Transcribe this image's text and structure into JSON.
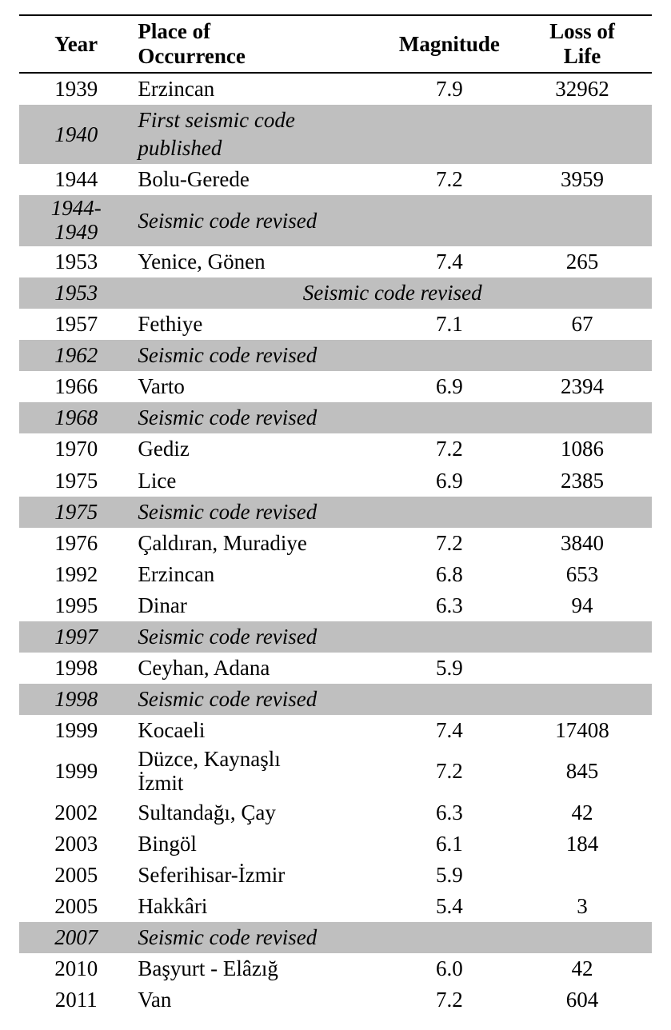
{
  "table": {
    "background_color": "#ffffff",
    "shade_color": "#bfbfbf",
    "border_color": "#000000",
    "font_family": "Times New Roman",
    "header_fontsize": 27,
    "body_fontsize": 27,
    "columns": [
      {
        "key": "year",
        "label": "Year",
        "align": "center"
      },
      {
        "key": "place",
        "label": "Place of\nOccurrence",
        "align": "left"
      },
      {
        "key": "mag",
        "label": "Magnitude",
        "align": "center"
      },
      {
        "key": "loss",
        "label": "Loss of\nLife",
        "align": "center"
      }
    ],
    "rows": [
      {
        "type": "data",
        "year": "1939",
        "place": "Erzincan",
        "mag": "7.9",
        "loss": "32962"
      },
      {
        "type": "shaded",
        "year": "1940",
        "note": "First seismic code published",
        "span": "place"
      },
      {
        "type": "data",
        "year": "1944",
        "place": "Bolu-Gerede",
        "mag": "7.2",
        "loss": "3959"
      },
      {
        "type": "shaded",
        "year": "1944-\n1949",
        "note": "Seismic code revised",
        "span": "place"
      },
      {
        "type": "data",
        "year": "1953",
        "place": "Yenice, Gönen",
        "mag": "7.4",
        "loss": "265"
      },
      {
        "type": "shaded",
        "year": "1953",
        "note": "Seismic code revised",
        "span": "center3"
      },
      {
        "type": "data",
        "year": "1957",
        "place": "Fethiye",
        "mag": "7.1",
        "loss": "67"
      },
      {
        "type": "shaded",
        "year": "1962",
        "note": "Seismic code revised",
        "span": "place"
      },
      {
        "type": "data",
        "year": "1966",
        "place": "Varto",
        "mag": "6.9",
        "loss": "2394"
      },
      {
        "type": "shaded",
        "year": "1968",
        "note": "Seismic code revised",
        "span": "place"
      },
      {
        "type": "data",
        "year": "1970",
        "place": "Gediz",
        "mag": "7.2",
        "loss": "1086"
      },
      {
        "type": "data",
        "year": "1975",
        "place": "Lice",
        "mag": "6.9",
        "loss": "2385"
      },
      {
        "type": "shaded",
        "year": "1975",
        "note": "Seismic code revised",
        "span": "place"
      },
      {
        "type": "data",
        "year": "1976",
        "place": "Çaldıran, Muradiye",
        "mag": "7.2",
        "loss": "3840"
      },
      {
        "type": "data",
        "year": "1992",
        "place": "Erzincan",
        "mag": "6.8",
        "loss": "653"
      },
      {
        "type": "data",
        "year": "1995",
        "place": "Dinar",
        "mag": "6.3",
        "loss": "94"
      },
      {
        "type": "shaded",
        "year": "1997",
        "note": "Seismic code revised",
        "span": "place"
      },
      {
        "type": "data",
        "year": "1998",
        "place": "Ceyhan, Adana",
        "mag": "5.9",
        "loss": ""
      },
      {
        "type": "shaded",
        "year": "1998",
        "note": "Seismic code revised",
        "span": "place"
      },
      {
        "type": "data",
        "year": "1999",
        "place": "Kocaeli",
        "mag": "7.4",
        "loss": "17408"
      },
      {
        "type": "data",
        "year": "1999",
        "place": "Düzce, Kaynaşlı\nİzmit",
        "mag": "7.2",
        "loss": "845"
      },
      {
        "type": "data",
        "year": "2002",
        "place": "Sultandağı, Çay",
        "mag": "6.3",
        "loss": "42"
      },
      {
        "type": "data",
        "year": "2003",
        "place": "Bingöl",
        "mag": "6.1",
        "loss": "184"
      },
      {
        "type": "data",
        "year": "2005",
        "place": "Seferihisar-İzmir",
        "mag": "5.9",
        "loss": ""
      },
      {
        "type": "data",
        "year": "2005",
        "place": "Hakkâri",
        "mag": "5.4",
        "loss": "3"
      },
      {
        "type": "shaded",
        "year": "2007",
        "note": "Seismic code revised",
        "span": "place"
      },
      {
        "type": "data",
        "year": "2010",
        "place": "Başyurt - Elâzığ",
        "mag": "6.0",
        "loss": "42"
      },
      {
        "type": "data",
        "year": "2011",
        "place": "Van",
        "mag": "7.2",
        "loss": "604"
      }
    ]
  }
}
